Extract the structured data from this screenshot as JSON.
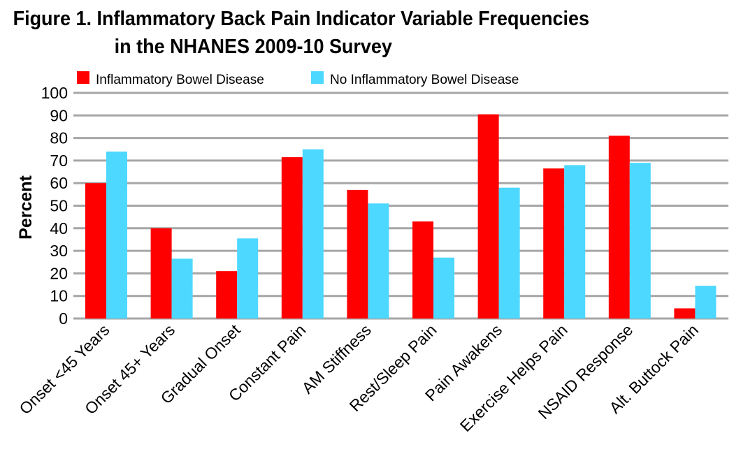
{
  "title_line1": "Figure 1. Inflammatory Back Pain Indicator Variable Frequencies",
  "title_line2": "in the NHANES 2009-10 Survey",
  "chart_data": {
    "type": "bar",
    "title": "Figure 1. Inflammatory Back Pain Indicator Variable Frequencies in the NHANES 2009-10 Survey",
    "xlabel": "",
    "ylabel": "Percent",
    "ylim": [
      0,
      100
    ],
    "yticks": [
      0,
      10,
      20,
      30,
      40,
      50,
      60,
      70,
      80,
      90,
      100
    ],
    "grid": true,
    "legend_position": "top",
    "categories": [
      "Onset <45 Years",
      "Onset 45+ Years",
      "Gradual Onset",
      "Constant Pain",
      "AM Stiffness",
      "Rest/Sleep Pain",
      "Pain Awakens",
      "Exercise Helps Pain",
      "NSAID Response",
      "Alt. Buttock Pain"
    ],
    "series": [
      {
        "name": "Inflammatory Bowel Disease",
        "color": "#ff0000",
        "values": [
          60,
          40,
          21,
          71.5,
          57,
          43,
          90.5,
          66.5,
          81,
          4.5
        ]
      },
      {
        "name": "No Inflammatory Bowel Disease",
        "color": "#4dd8ff",
        "values": [
          74,
          26.5,
          35.5,
          75,
          51,
          27,
          58,
          68,
          69,
          14.5
        ]
      }
    ]
  }
}
